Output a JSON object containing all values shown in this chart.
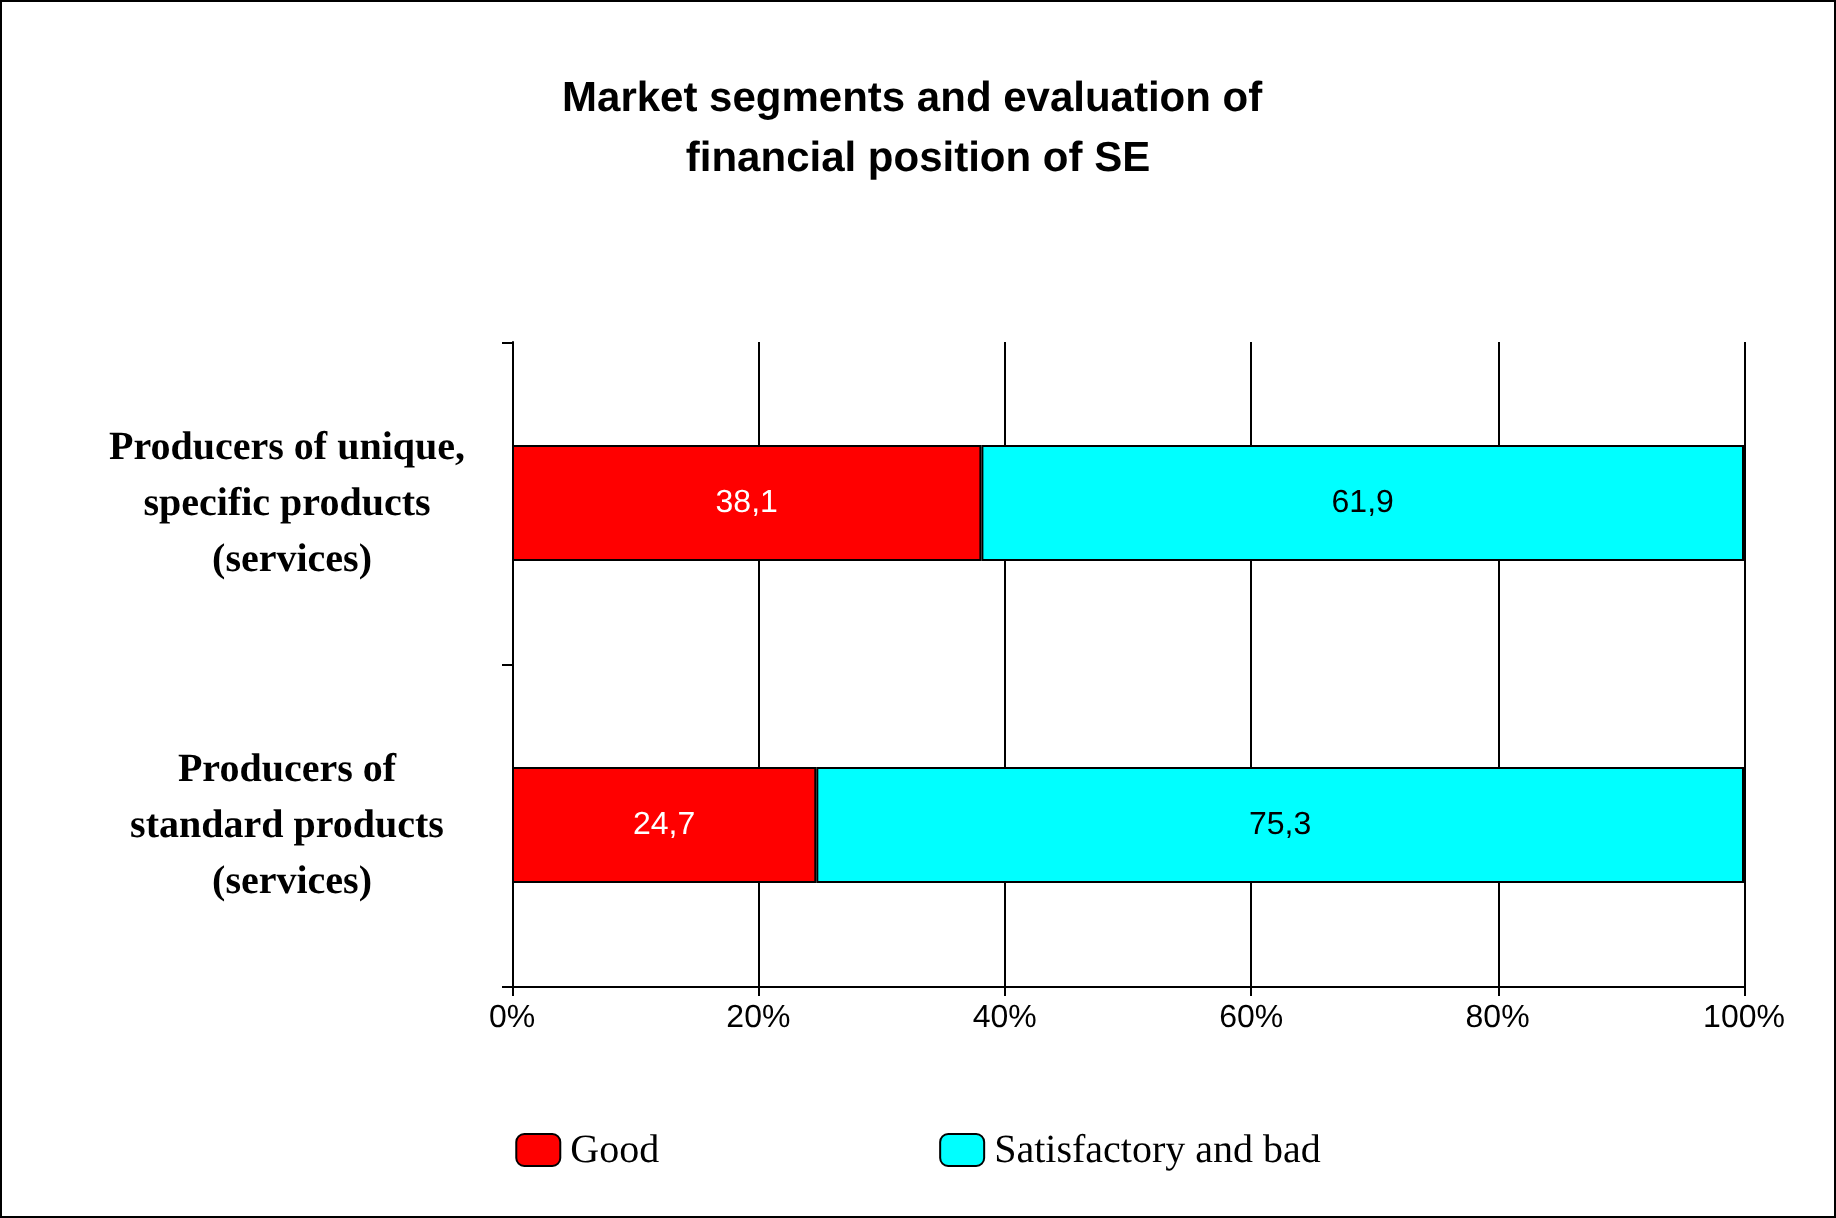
{
  "chart_data": {
    "type": "bar",
    "orientation": "horizontal",
    "stacked": true,
    "title": "Market segments and evaluation of financial position of SE",
    "categories": [
      "Producers of unique, specific products (services)",
      "Producers of standard products (services)"
    ],
    "series": [
      {
        "name": "Good",
        "color": "#ff0000",
        "values": [
          38.1,
          24.7
        ],
        "value_labels": [
          "38,1",
          "24,7"
        ]
      },
      {
        "name": "Satisfactory and bad",
        "color": "#00ffff",
        "values": [
          61.9,
          75.3
        ],
        "value_labels": [
          "61,9",
          "75,3"
        ]
      }
    ],
    "xlim": [
      0,
      100
    ],
    "xticks": [
      {
        "value": 0,
        "label": "0%"
      },
      {
        "value": 20,
        "label": "20%"
      },
      {
        "value": 40,
        "label": "40%"
      },
      {
        "value": 60,
        "label": "60%"
      },
      {
        "value": 80,
        "label": "80%"
      },
      {
        "value": 100,
        "label": "100%"
      }
    ],
    "grid": "x",
    "legend": "bottom"
  }
}
